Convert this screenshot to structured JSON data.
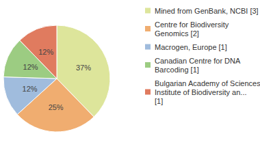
{
  "chart_data": {
    "type": "pie",
    "categories": [
      "Mined from GenBank, NCBI [3]",
      "Centre for Biodiversity Genomics [2]",
      "Macrogen, Europe [1]",
      "Canadian Centre for DNA Barcoding [1]",
      "Bulgarian Academy of Sciences, Institute of Biodiversity an... [1]"
    ],
    "values": [
      37,
      25,
      12,
      12,
      12
    ],
    "value_labels": [
      "37%",
      "25%",
      "12%",
      "12%",
      "12%"
    ],
    "colors": [
      "#dde59b",
      "#f0ad70",
      "#a0bcdd",
      "#9ccc82",
      "#e07b5f"
    ],
    "data_labels": true,
    "legend": "right"
  }
}
